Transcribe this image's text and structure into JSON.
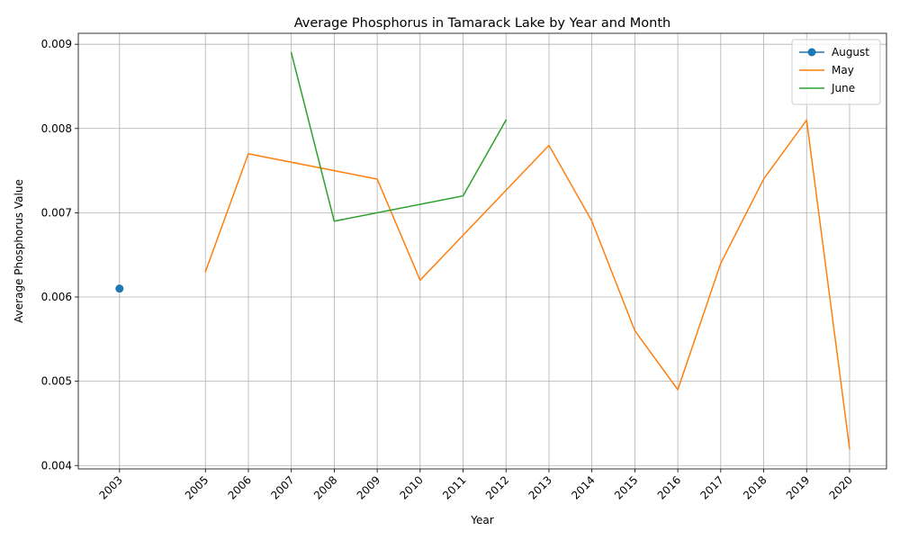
{
  "chart_data": {
    "type": "line",
    "title": "Average Phosphorus in Tamarack Lake by Year and Month",
    "xlabel": "Year",
    "ylabel": "Average Phosphorus Value",
    "x_ticks": [
      2003,
      2005,
      2006,
      2007,
      2008,
      2009,
      2010,
      2011,
      2012,
      2013,
      2014,
      2015,
      2016,
      2017,
      2018,
      2019,
      2020
    ],
    "xlim": [
      2002.04,
      2020.86
    ],
    "ylim": [
      0.00396,
      0.00913
    ],
    "y_ticks": [
      "0.004",
      "0.005",
      "0.006",
      "0.007",
      "0.008",
      "0.009"
    ],
    "grid": true,
    "legend_position": "top-right",
    "series": [
      {
        "name": "August",
        "color": "#1f77b4",
        "marker": "circle",
        "x": [
          2003
        ],
        "y": [
          0.0061
        ]
      },
      {
        "name": "May",
        "color": "#ff7f0e",
        "marker": "none",
        "x": [
          2005,
          2006,
          2009,
          2010,
          2013,
          2014,
          2015,
          2016,
          2017,
          2018,
          2019,
          2020
        ],
        "y": [
          0.0063,
          0.0077,
          0.0074,
          0.0062,
          0.0078,
          0.0069,
          0.0056,
          0.0049,
          0.0064,
          0.0074,
          0.0081,
          0.0042
        ]
      },
      {
        "name": "June",
        "color": "#2ca02c",
        "marker": "none",
        "x": [
          2007,
          2008,
          2011,
          2012
        ],
        "y": [
          0.0089,
          0.0069,
          0.0072,
          0.0081
        ]
      }
    ]
  }
}
